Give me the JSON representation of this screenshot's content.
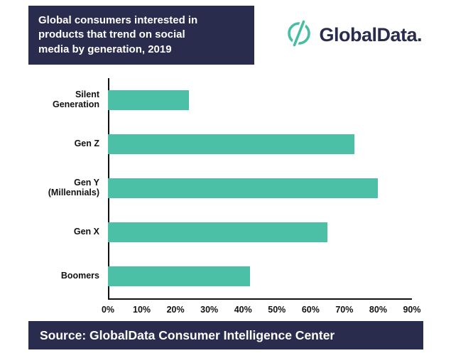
{
  "header": {
    "title_lines": [
      "Global consumers interested in",
      "products that trend on social",
      "media by generation, 2019"
    ],
    "logo_text": "GlobalData."
  },
  "footer": {
    "source": "Source: GlobalData Consumer Intelligence Center"
  },
  "colors": {
    "navy": "#292c4d",
    "teal": "#46bea2",
    "bar_teal": "#4cc0a6",
    "axis_black": "#111111"
  },
  "chart_data": {
    "type": "bar",
    "orientation": "horizontal",
    "title": "Global consumers interested in products that trend on social media by generation, 2019",
    "categories": [
      "Silent Generation",
      "Gen Z",
      "Gen Y (Millennials)",
      "Gen X",
      "Boomers"
    ],
    "values": [
      24,
      73,
      80,
      65,
      42
    ],
    "value_suffix": "%",
    "xlim": [
      0,
      90
    ],
    "x_ticks": [
      0,
      10,
      20,
      30,
      40,
      50,
      60,
      70,
      80,
      90
    ],
    "x_tick_labels": [
      "0%",
      "10%",
      "20%",
      "30%",
      "40%",
      "50%",
      "60%",
      "70%",
      "80%",
      "90%"
    ],
    "grid": false,
    "legend": false,
    "bar_color": "#4cc0a6"
  }
}
